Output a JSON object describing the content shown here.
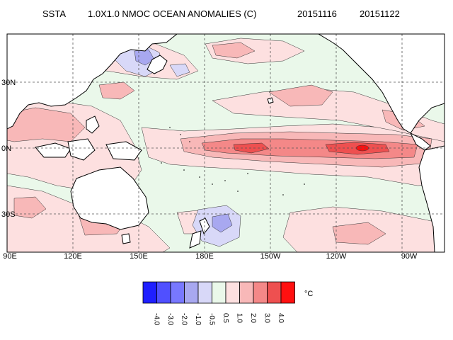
{
  "title": {
    "variable": "SSTA",
    "main": "1.0X1.0 NMOC OCEAN ANOMALIES (C)",
    "date_start": "20151116",
    "date_end": "20151122"
  },
  "map": {
    "lat_labels": [
      "30N",
      "0N",
      "30S"
    ],
    "lon_labels": [
      "90E",
      "120E",
      "150E",
      "180E",
      "150W",
      "120W",
      "90W"
    ]
  },
  "colorbar": {
    "unit": "°C",
    "labels": [
      "-4.0",
      "-3.0",
      "-2.0",
      "-1.0",
      "-0.5",
      "0.5",
      "1.0",
      "2.0",
      "3.0",
      "4.0"
    ],
    "colors": [
      "#1f1fff",
      "#5050ff",
      "#7878ff",
      "#a8a8f0",
      "#d8d8f8",
      "#eaf8ea",
      "#fde0e0",
      "#f8b8b8",
      "#f48888",
      "#ee5050",
      "#ff1010"
    ]
  },
  "colors": {
    "land": "#ffffff",
    "ocean_base": "#eaf8ea",
    "coast": "#000000"
  }
}
